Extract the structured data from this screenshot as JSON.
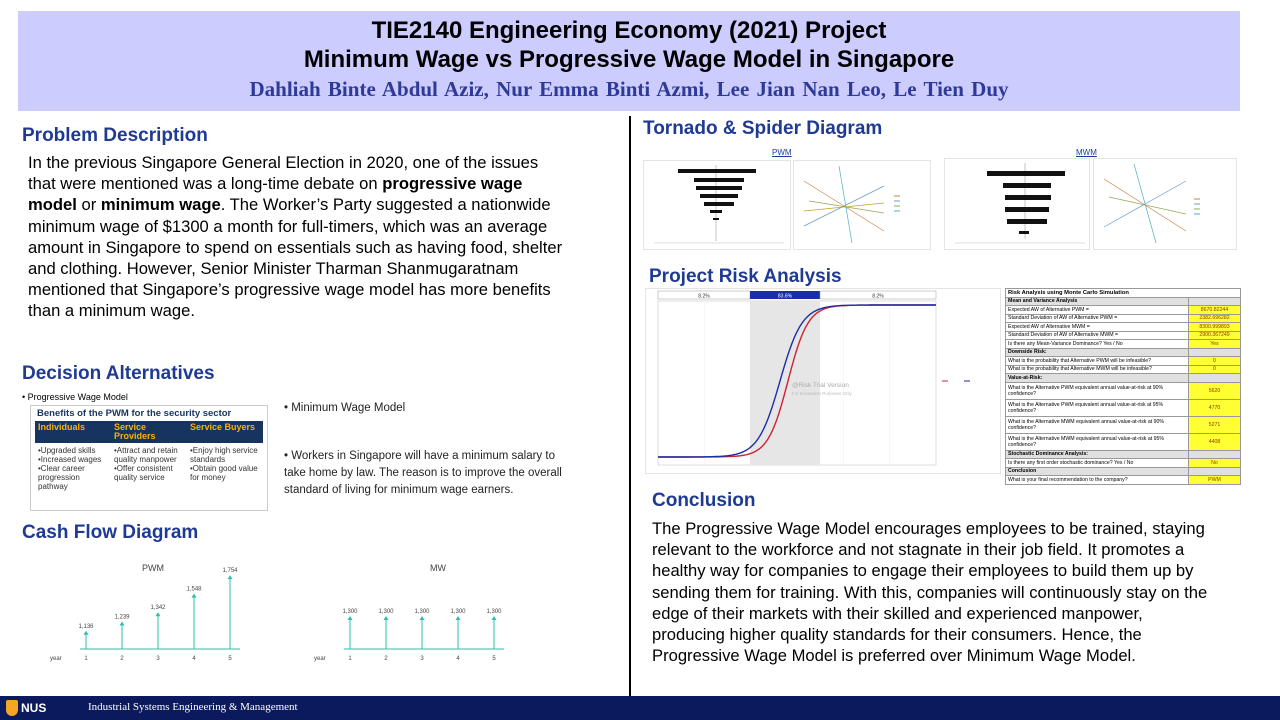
{
  "header": {
    "title_line1": "TIE2140 Engineering Economy (2021) Project",
    "title_line2": "Minimum Wage vs Progressive Wage Model in Singapore",
    "authors": "Dahliah Binte Abdul Aziz,  Nur Emma Binti Azmi,   Lee Jian Nan Leo,   Le Tien Duy"
  },
  "problem": {
    "title": "Problem Description",
    "text_1": "In the previous Singapore General Election in 2020, one of the issues that were mentioned was a long-time debate on ",
    "bold_1": "progressive wage model",
    "text_2": " or ",
    "bold_2": "minimum wage",
    "text_3": ". The Worker’s Party suggested a nationwide minimum wage of $1300 a month for full-timers, which was an average amount in Singapore to spend on essentials such as having food, shelter and clothing. However, Senior Minister Tharman Shanmugaratnam mentioned that Singapore’s progressive wage model has more benefits than a minimum wage."
  },
  "decision": {
    "title": "Decision Alternatives",
    "pwm_bullet": "• Progressive Wage Model",
    "pwm_box_title": "Benefits of the PWM for the security sector",
    "pwm_cols": [
      {
        "head": "Individuals",
        "items": "•Upgraded skills\n•Increased wages\n•Clear career progression pathway"
      },
      {
        "head": "Service Providers",
        "items": "•Attract and retain quality manpower\n•Offer consistent quality service"
      },
      {
        "head": "Service Buyers",
        "items": "•Enjoy high service standards\n•Obtain good value for money"
      }
    ],
    "mw_bullet": "• Minimum Wage Model",
    "mw_desc": "• Workers in Singapore will have a minimum salary to take home by law. The reason is to improve the overall standard of living for minimum wage earners."
  },
  "cashflow": {
    "title": "Cash Flow Diagram",
    "axis_label": "year",
    "pwm": {
      "title": "PWM",
      "years": [
        "1",
        "2",
        "3",
        "4",
        "5"
      ],
      "labels": [
        "1,136",
        "1,239",
        "1,342",
        "1,548",
        "1,754"
      ],
      "values": [
        1136,
        1239,
        1342,
        1548,
        1754
      ]
    },
    "mw": {
      "title": "MW",
      "years": [
        "1",
        "2",
        "3",
        "4",
        "5"
      ],
      "labels": [
        "1,300",
        "1,300",
        "1,300",
        "1,300",
        "1,300"
      ],
      "values": [
        1300,
        1300,
        1300,
        1300,
        1300
      ]
    }
  },
  "tornado": {
    "title": "Tornado & Spider Diagram",
    "pwm_label": "PWM",
    "mwm_label": "MWM"
  },
  "risk": {
    "title": "Project Risk Analysis",
    "band_labels": [
      "8.2%",
      "83.6%",
      "8.2%"
    ],
    "watermark": "@Risk Trial Version",
    "watermark_sub": "For Evaluation Purposes Only",
    "table": {
      "title": "Risk Analysis using Monte Carlo Simulation",
      "rows": [
        {
          "type": "sub",
          "label": "Mean and Variance Analysis",
          "value": ""
        },
        {
          "type": "row",
          "label": "Expected AW of Alternative PWM =",
          "value": "8670.82244"
        },
        {
          "type": "row",
          "label": "Standard Deviation of AW of Alternative PWM =",
          "value": "2382.696282"
        },
        {
          "type": "row",
          "label": "Expected AW of Alternative MWM =",
          "value": "8300.999893"
        },
        {
          "type": "row",
          "label": "Standard Deviation of AW of Alternative MWM =",
          "value": "2900.367249"
        },
        {
          "type": "row",
          "label": "Is there any Mean-Variance Dominance? Yes / No",
          "value": "Yes"
        },
        {
          "type": "sub",
          "label": "Downside Risk:",
          "value": ""
        },
        {
          "type": "row",
          "label": "What is the probability that Alternative PWM will be infeasible?",
          "value": "0"
        },
        {
          "type": "row",
          "label": "What is the probability that Alternative MWM will be infeasible?",
          "value": "0"
        },
        {
          "type": "sub",
          "label": "Value-at-Risk:",
          "value": ""
        },
        {
          "type": "tall",
          "label": "What is the Alternative PWM equivalent annual value-at-risk at 90% confidence?",
          "value": "5620"
        },
        {
          "type": "tall",
          "label": "What is the Alternative PWM equivalent annual value-at-risk at 95% confidence?",
          "value": "4770"
        },
        {
          "type": "tall",
          "label": "What is the Alternative MWM equivalent annual value-at-risk at 90% confidence?",
          "value": "5271"
        },
        {
          "type": "tall",
          "label": "What is the Alternative MWM equivalent annual value-at-risk at 95% confidence?",
          "value": "4408"
        },
        {
          "type": "sub",
          "label": "Stochastic Dominance Analysis:",
          "value": ""
        },
        {
          "type": "row",
          "label": "Is there any first order stochastic dominance? Yes / No",
          "value": "No"
        },
        {
          "type": "sub",
          "label": "Conclusion",
          "value": ""
        },
        {
          "type": "row",
          "label": "What is your final recommendation to the company?",
          "value": "PWM"
        }
      ]
    }
  },
  "conclusion": {
    "title": "Conclusion",
    "text": "The Progressive Wage Model encourages employees to be trained, staying relevant to the workforce and not stagnate in their job field. It promotes a healthy way for companies to engage their employees to build them up by sending them for training. With this, companies will continuously stay on the edge of their markets with their skilled and experienced manpower, producing higher quality standards for their consumers. Hence, the Progressive Wage Model is preferred over Minimum Wage Model."
  },
  "footer": {
    "logo_text": "NUS",
    "department": "Industrial Systems Engineering & Management"
  },
  "colors": {
    "header_bg": "#ccccff",
    "section_title": "#1f3a93",
    "footer_bg": "#0a1a5c",
    "cdf_red": "#cc2233",
    "cdf_blue": "#1a2ea8",
    "cashflow_arrow": "#2bbfb0"
  }
}
